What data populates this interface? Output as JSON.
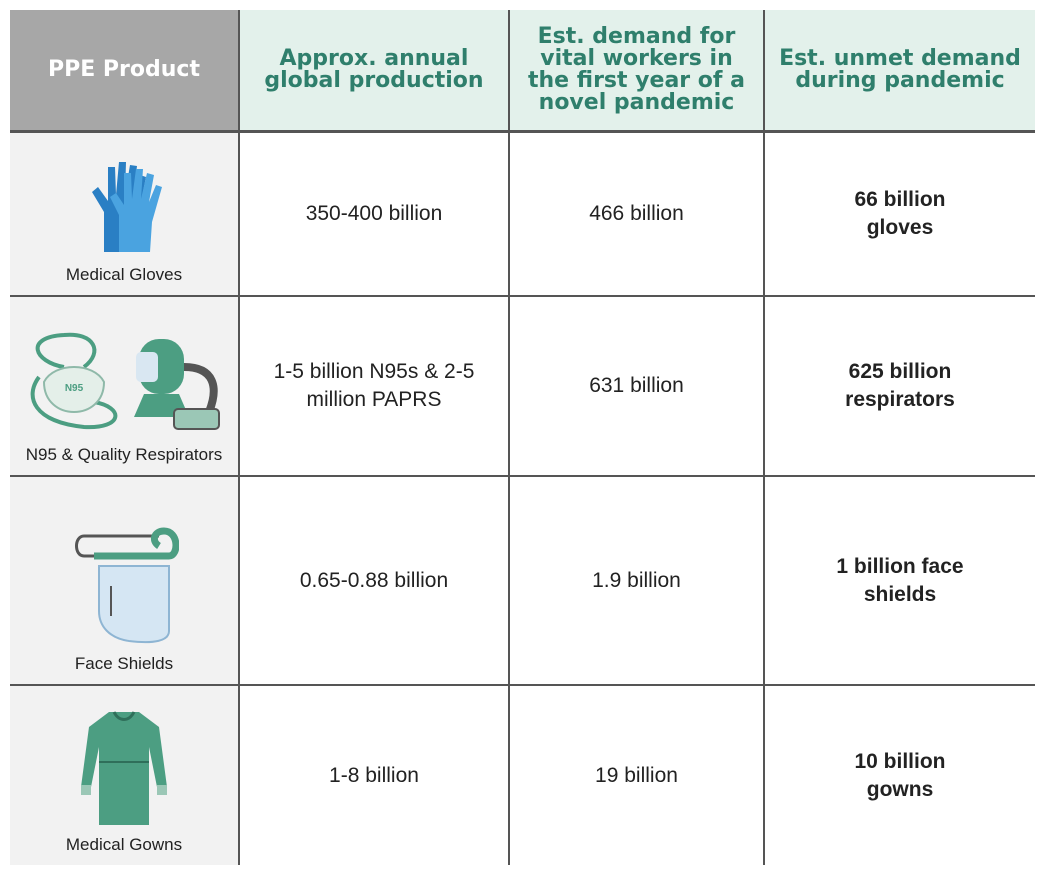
{
  "header": {
    "product": "PPE Product",
    "production": "Approx. annual global production",
    "demand": "Est. demand for vital workers in the first year of a novel pandemic",
    "unmet": "Est. unmet demand during pandemic"
  },
  "rows": [
    {
      "product": "Medical Gloves",
      "production": "350-400 billion",
      "demand": "466 billion",
      "unmet": "66 billion gloves"
    },
    {
      "product": "N95 & Quality Respirators",
      "icon_text": "N95",
      "production": "1-5 billion N95s & 2-5 million PAPRS",
      "demand": "631 billion",
      "unmet": "625 billion respirators"
    },
    {
      "product": "Face Shields",
      "production": "0.65-0.88 billion",
      "demand": "1.9 billion",
      "unmet": "1 billion face shields"
    },
    {
      "product": "Medical Gowns",
      "production": "1-8 billion",
      "demand": "19 billion",
      "unmet": "10 billion gowns"
    }
  ]
}
